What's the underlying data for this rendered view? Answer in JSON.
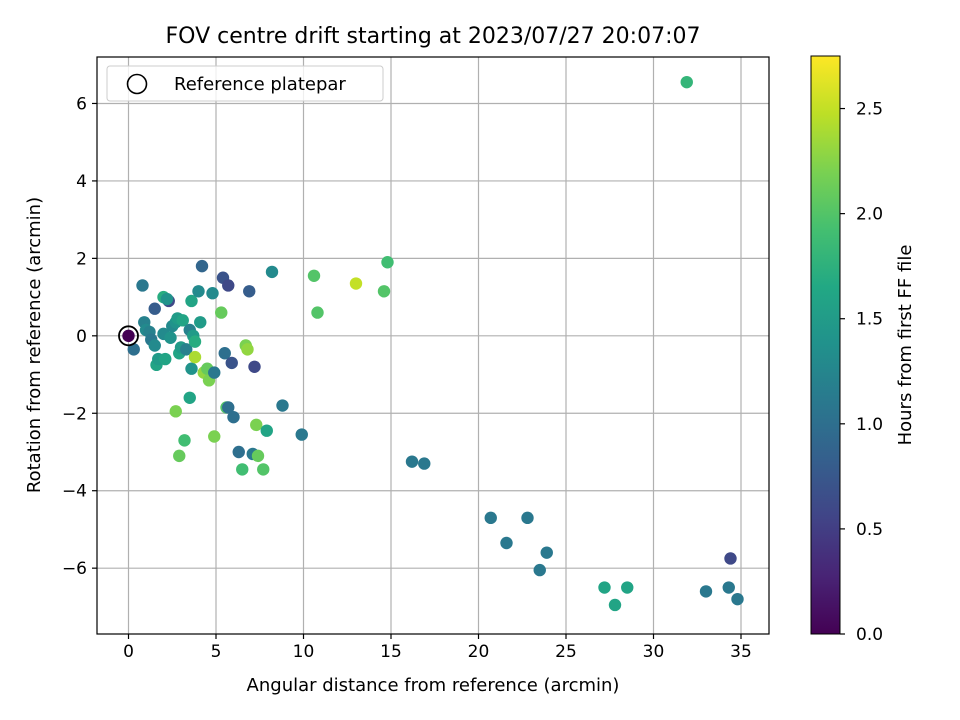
{
  "chart_data": {
    "type": "scatter",
    "title": "FOV centre drift starting at 2023/07/27 20:07:07",
    "xlabel": "Angular distance from reference (arcmin)",
    "ylabel": "Rotation from reference (arcmin)",
    "xlim": [
      -1.8,
      36.6
    ],
    "ylim": [
      -7.7,
      7.2
    ],
    "xticks": [
      0,
      5,
      10,
      15,
      20,
      25,
      30,
      35
    ],
    "yticks": [
      -6,
      -4,
      -2,
      0,
      2,
      4,
      6
    ],
    "xtick_labels": [
      "0",
      "5",
      "10",
      "15",
      "20",
      "25",
      "30",
      "35"
    ],
    "ytick_labels": [
      "−6",
      "−4",
      "−2",
      "0",
      "2",
      "4",
      "6"
    ],
    "grid": true,
    "legend": {
      "placement": "upper left",
      "entries": [
        "Reference platepar"
      ]
    },
    "reference_point": {
      "x": 0,
      "y": 0,
      "label": "Reference platepar"
    },
    "colorbar": {
      "label": "Hours from first FF file",
      "colormap": "viridis",
      "range": [
        0,
        2.75
      ],
      "ticks": [
        0,
        0.5,
        1.0,
        1.5,
        2.0,
        2.5
      ],
      "tick_labels": [
        "0.0",
        "0.5",
        "1.0",
        "1.5",
        "2.0",
        "2.5"
      ]
    },
    "points": [
      {
        "x": 0.0,
        "y": 0.0,
        "t": 0.0
      },
      {
        "x": 0.3,
        "y": -0.35,
        "t": 1.0
      },
      {
        "x": 0.8,
        "y": 1.3,
        "t": 1.1
      },
      {
        "x": 0.9,
        "y": 0.35,
        "t": 1.2
      },
      {
        "x": 1.0,
        "y": 0.15,
        "t": 1.3
      },
      {
        "x": 1.2,
        "y": 0.1,
        "t": 1.2
      },
      {
        "x": 1.3,
        "y": -0.1,
        "t": 1.1
      },
      {
        "x": 1.5,
        "y": -0.25,
        "t": 1.3
      },
      {
        "x": 1.5,
        "y": 0.7,
        "t": 0.8
      },
      {
        "x": 1.6,
        "y": -0.75,
        "t": 1.6
      },
      {
        "x": 1.7,
        "y": -0.6,
        "t": 1.5
      },
      {
        "x": 2.0,
        "y": 1.0,
        "t": 1.7
      },
      {
        "x": 2.1,
        "y": -0.6,
        "t": 1.6
      },
      {
        "x": 2.0,
        "y": 0.05,
        "t": 1.3
      },
      {
        "x": 2.3,
        "y": 0.9,
        "t": 0.6
      },
      {
        "x": 2.2,
        "y": 0.95,
        "t": 1.4
      },
      {
        "x": 2.4,
        "y": -0.05,
        "t": 1.4
      },
      {
        "x": 2.5,
        "y": 0.25,
        "t": 1.3
      },
      {
        "x": 2.7,
        "y": 0.35,
        "t": 1.4
      },
      {
        "x": 2.8,
        "y": 0.45,
        "t": 1.5
      },
      {
        "x": 2.9,
        "y": -0.45,
        "t": 1.6
      },
      {
        "x": 3.0,
        "y": -0.3,
        "t": 1.5
      },
      {
        "x": 3.1,
        "y": 0.4,
        "t": 1.6
      },
      {
        "x": 3.3,
        "y": -0.35,
        "t": 1.2
      },
      {
        "x": 3.5,
        "y": 0.15,
        "t": 1.2
      },
      {
        "x": 3.6,
        "y": -0.85,
        "t": 1.4
      },
      {
        "x": 3.6,
        "y": 0.9,
        "t": 1.6
      },
      {
        "x": 3.7,
        "y": 0.0,
        "t": 1.5
      },
      {
        "x": 3.8,
        "y": -0.15,
        "t": 1.7
      },
      {
        "x": 3.8,
        "y": -0.55,
        "t": 2.4
      },
      {
        "x": 3.5,
        "y": -1.6,
        "t": 1.6
      },
      {
        "x": 4.0,
        "y": 1.15,
        "t": 1.3
      },
      {
        "x": 4.1,
        "y": 0.35,
        "t": 1.5
      },
      {
        "x": 4.2,
        "y": 1.8,
        "t": 0.9
      },
      {
        "x": 4.3,
        "y": -0.95,
        "t": 2.3
      },
      {
        "x": 4.5,
        "y": -0.85,
        "t": 2.1
      },
      {
        "x": 4.6,
        "y": -1.15,
        "t": 2.2
      },
      {
        "x": 4.8,
        "y": 1.1,
        "t": 1.3
      },
      {
        "x": 4.9,
        "y": -0.95,
        "t": 1.1
      },
      {
        "x": 2.7,
        "y": -1.95,
        "t": 2.2
      },
      {
        "x": 2.9,
        "y": -3.1,
        "t": 2.1
      },
      {
        "x": 3.2,
        "y": -2.7,
        "t": 1.9
      },
      {
        "x": 4.9,
        "y": -2.6,
        "t": 2.2
      },
      {
        "x": 5.3,
        "y": 0.6,
        "t": 2.1
      },
      {
        "x": 5.4,
        "y": 1.5,
        "t": 0.7
      },
      {
        "x": 5.5,
        "y": -0.45,
        "t": 1.0
      },
      {
        "x": 5.6,
        "y": -1.85,
        "t": 2.0
      },
      {
        "x": 5.7,
        "y": -1.85,
        "t": 1.0
      },
      {
        "x": 5.7,
        "y": 1.3,
        "t": 0.6
      },
      {
        "x": 5.9,
        "y": -0.7,
        "t": 0.7
      },
      {
        "x": 6.0,
        "y": -2.1,
        "t": 1.0
      },
      {
        "x": 6.3,
        "y": -3.0,
        "t": 1.0
      },
      {
        "x": 6.5,
        "y": -3.45,
        "t": 1.9
      },
      {
        "x": 6.7,
        "y": -0.25,
        "t": 2.2
      },
      {
        "x": 6.8,
        "y": -0.35,
        "t": 2.3
      },
      {
        "x": 6.9,
        "y": 1.15,
        "t": 0.8
      },
      {
        "x": 7.1,
        "y": -3.05,
        "t": 1.1
      },
      {
        "x": 7.2,
        "y": -0.8,
        "t": 0.6
      },
      {
        "x": 7.3,
        "y": -2.3,
        "t": 2.2
      },
      {
        "x": 7.4,
        "y": -3.1,
        "t": 2.1
      },
      {
        "x": 7.7,
        "y": -3.45,
        "t": 2.0
      },
      {
        "x": 7.9,
        "y": -2.45,
        "t": 1.6
      },
      {
        "x": 8.2,
        "y": 1.65,
        "t": 1.3
      },
      {
        "x": 8.8,
        "y": -1.8,
        "t": 1.1
      },
      {
        "x": 9.9,
        "y": -2.55,
        "t": 1.1
      },
      {
        "x": 10.6,
        "y": 1.55,
        "t": 2.0
      },
      {
        "x": 10.8,
        "y": 0.6,
        "t": 2.0
      },
      {
        "x": 13.0,
        "y": 1.35,
        "t": 2.5
      },
      {
        "x": 14.6,
        "y": 1.15,
        "t": 2.0
      },
      {
        "x": 14.8,
        "y": 1.9,
        "t": 1.9
      },
      {
        "x": 16.2,
        "y": -3.25,
        "t": 1.1
      },
      {
        "x": 16.9,
        "y": -3.3,
        "t": 1.1
      },
      {
        "x": 20.7,
        "y": -4.7,
        "t": 1.1
      },
      {
        "x": 21.6,
        "y": -5.35,
        "t": 1.1
      },
      {
        "x": 22.8,
        "y": -4.7,
        "t": 1.1
      },
      {
        "x": 23.5,
        "y": -6.05,
        "t": 1.1
      },
      {
        "x": 23.9,
        "y": -5.6,
        "t": 1.1
      },
      {
        "x": 27.2,
        "y": -6.5,
        "t": 1.6
      },
      {
        "x": 27.8,
        "y": -6.95,
        "t": 1.6
      },
      {
        "x": 28.5,
        "y": -6.5,
        "t": 1.6
      },
      {
        "x": 31.9,
        "y": 6.55,
        "t": 1.8
      },
      {
        "x": 33.0,
        "y": -6.6,
        "t": 1.1
      },
      {
        "x": 34.3,
        "y": -6.5,
        "t": 1.1
      },
      {
        "x": 34.4,
        "y": -5.75,
        "t": 0.6
      },
      {
        "x": 34.8,
        "y": -6.8,
        "t": 1.1
      }
    ]
  }
}
